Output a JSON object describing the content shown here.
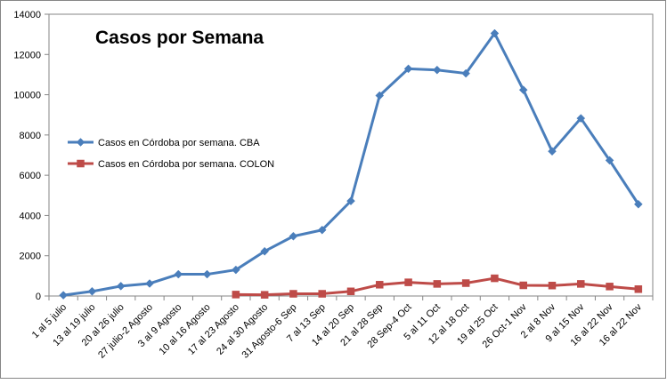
{
  "chart_data": {
    "type": "line",
    "title": "Casos por Semana",
    "xlabel": "",
    "ylabel": "",
    "ylim": [
      0,
      14000
    ],
    "yticks": [
      0,
      2000,
      4000,
      6000,
      8000,
      10000,
      12000,
      14000
    ],
    "grid": false,
    "legend_position": "left",
    "categories": [
      "1 al 5 julio",
      "13 al 19 julio",
      "20 al 26 julio",
      "27 julio-2 Agosto",
      "3 al 9 Agosto",
      "10 al 16 Agosto",
      "17 al 23 Agosto",
      "24 al 30 Agosto",
      "31 Agosto-6 Sep",
      "7 al 13 Sep",
      "14 al 20 Sep",
      "21 al 28 Sep",
      "28 Sep-4 Oct",
      "5 al 11 Oct",
      "12 al 18 Oct",
      "19 al 25 Oct",
      "26 Oct-1 Nov",
      "2 al 8 Nov",
      "9 al 15 Nov",
      "16 al 22 Nov",
      "16 al 22 Nov"
    ],
    "series": [
      {
        "name": "Casos en Córdoba por semana. CBA",
        "color": "#4a7ebb",
        "marker": "diamond",
        "values": [
          40,
          230,
          490,
          620,
          1080,
          1080,
          1300,
          2220,
          2970,
          3280,
          4720,
          9960,
          11290,
          11230,
          11060,
          13050,
          10240,
          7190,
          8830,
          6740,
          4560
        ]
      },
      {
        "name": "Casos en Córdoba por semana. COLON",
        "color": "#be4b48",
        "marker": "square",
        "values": [
          null,
          null,
          null,
          null,
          null,
          null,
          70,
          60,
          110,
          110,
          230,
          560,
          680,
          600,
          640,
          880,
          530,
          520,
          600,
          470,
          340
        ]
      }
    ]
  }
}
